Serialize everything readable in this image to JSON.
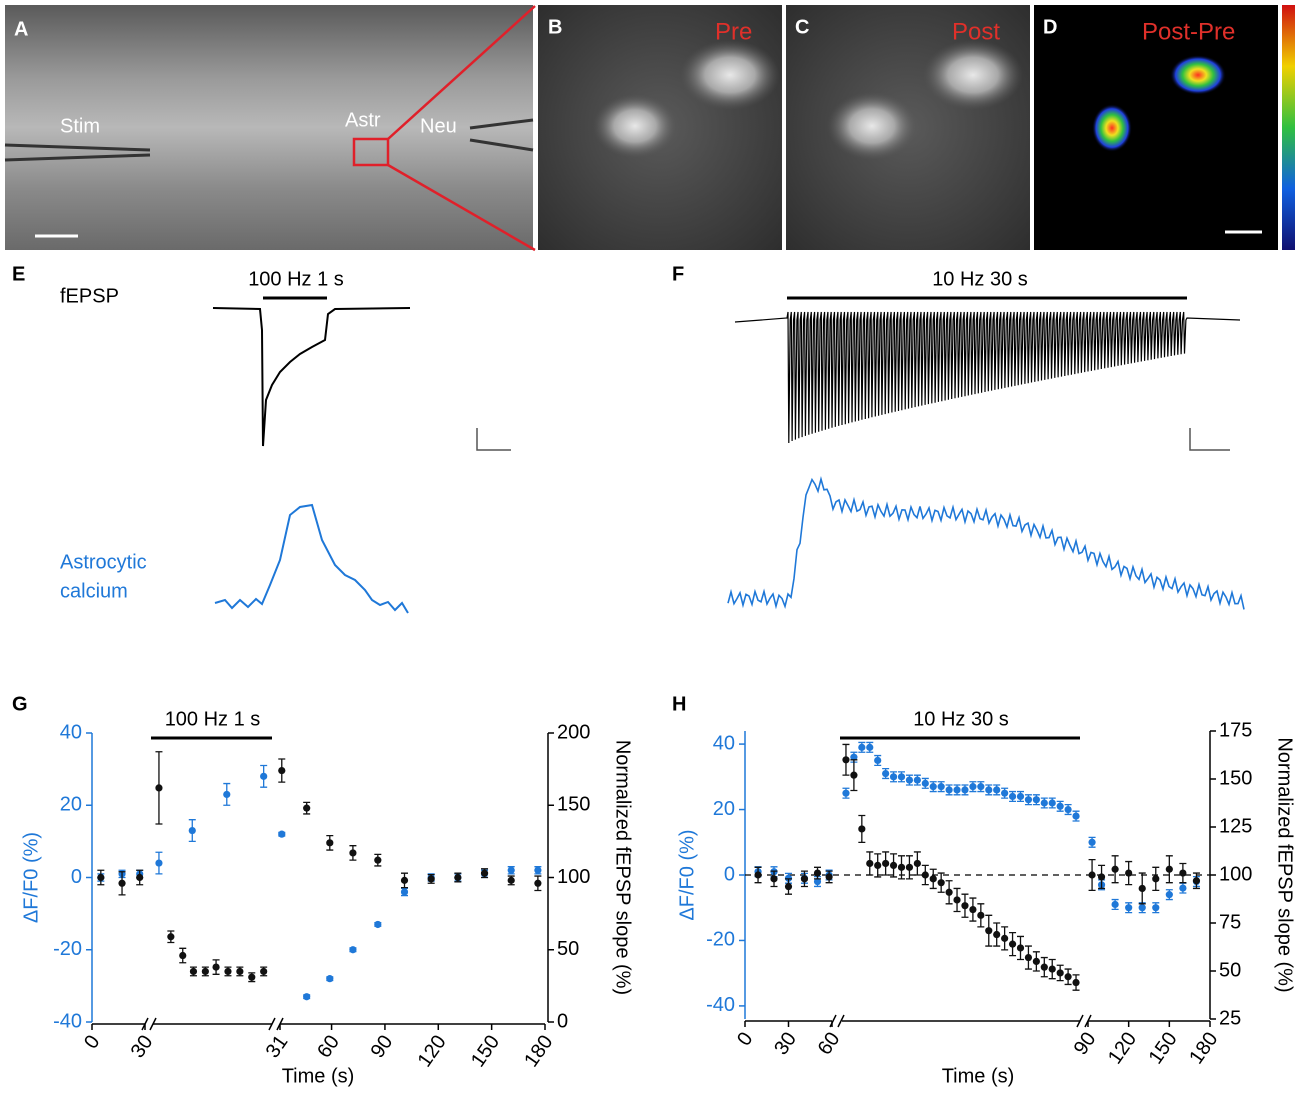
{
  "panels": {
    "A": {
      "label": "A",
      "annotations": [
        "Stim",
        "Astr",
        "Neu"
      ]
    },
    "B": {
      "label": "B",
      "title": "Pre"
    },
    "C": {
      "label": "C",
      "title": "Post"
    },
    "D": {
      "label": "D",
      "title": "Post-Pre"
    },
    "E": {
      "label": "E",
      "trace_labels": [
        "fEPSP",
        "Astrocytic",
        "calcium"
      ],
      "stimulus": "100 Hz 1 s"
    },
    "F": {
      "label": "F",
      "stimulus": "10 Hz 30 s"
    }
  },
  "chart_data": [
    {
      "type": "scatter",
      "label": "G",
      "annotation": "100 Hz 1 s",
      "xlabel": "Time (s)",
      "ylabel": "ΔF/F0 (%)",
      "y2label": "Normalized fEPSP slope (%)",
      "xsegments": [
        [
          0,
          30
        ],
        [
          30,
          31
        ],
        [
          31,
          180
        ]
      ],
      "xticks": [
        0,
        30,
        31,
        60,
        90,
        120,
        150,
        180
      ],
      "ylim": [
        -40,
        40
      ],
      "yticks": [
        -40,
        -20,
        0,
        20,
        40
      ],
      "y2lim": [
        0,
        200
      ],
      "y2ticks": [
        0,
        50,
        100,
        150,
        200
      ],
      "series": [
        {
          "color": "#1f78d8",
          "axis": "y",
          "x": [
            5,
            17,
            27,
            30.05,
            30.33,
            30.62,
            30.93,
            32,
            46,
            59,
            72,
            86,
            101,
            116,
            131,
            146,
            161,
            176
          ],
          "values": [
            0,
            1,
            1,
            4,
            13,
            23,
            28,
            12,
            -33,
            -28,
            -20,
            -13,
            -4,
            0,
            0,
            1,
            2,
            2
          ],
          "errors": [
            1,
            1,
            1,
            3,
            3,
            3,
            3,
            0.5,
            0.5,
            0.5,
            0.5,
            0.5,
            1,
            1,
            1,
            1,
            1,
            1
          ]
        },
        {
          "color": "#111111",
          "axis": "y2",
          "x": [
            5,
            17,
            27,
            30.05,
            30.15,
            30.25,
            30.34,
            30.44,
            30.53,
            30.63,
            30.73,
            30.83,
            30.93,
            32,
            46,
            59,
            72,
            86,
            101,
            116,
            131,
            146,
            161,
            176
          ],
          "values": [
            100,
            96,
            100,
            162,
            59,
            46,
            35,
            35,
            38,
            35,
            35,
            31,
            35,
            174,
            148,
            124,
            117,
            112,
            98,
            99,
            100,
            103,
            98,
            96
          ],
          "errors": [
            5,
            8,
            5,
            25,
            4,
            5,
            3,
            3,
            5,
            3,
            3,
            3,
            3,
            8,
            4,
            5,
            5,
            4,
            5,
            3,
            3,
            3,
            3,
            5
          ]
        }
      ]
    },
    {
      "type": "scatter",
      "label": "H",
      "annotation": "10 Hz 30 s",
      "xlabel": "Time (s)",
      "ylabel": "ΔF/F0 (%)",
      "y2label": "Normalized fEPSP slope (%)",
      "xsegments": [
        [
          0,
          60
        ],
        [
          60,
          90
        ],
        [
          90,
          180
        ]
      ],
      "xticks": [
        0,
        30,
        60,
        90,
        120,
        150,
        180
      ],
      "ylim": [
        -44,
        44
      ],
      "yticks": [
        -40,
        -20,
        0,
        20,
        40
      ],
      "y2lim": [
        25,
        175
      ],
      "y2ticks": [
        25,
        50,
        75,
        100,
        125,
        150,
        175
      ],
      "baseline": 0,
      "series": [
        {
          "color": "#1f78d8",
          "axis": "y",
          "x": [
            9,
            20,
            30,
            41,
            50,
            58,
            60.5,
            61.5,
            62.5,
            63.5,
            64.5,
            65.5,
            66.5,
            67.5,
            68.5,
            69.5,
            70.5,
            71.5,
            72.5,
            73.5,
            74.5,
            75.5,
            76.5,
            77.5,
            78.5,
            79.5,
            80.5,
            81.5,
            82.5,
            83.5,
            84.5,
            85.5,
            86.5,
            87.5,
            88.5,
            89.5,
            93,
            100,
            110,
            120,
            130,
            140,
            150,
            160,
            170
          ],
          "values": [
            1,
            1,
            -1,
            -1,
            -2,
            0,
            25,
            36,
            39,
            39,
            35,
            31,
            30,
            30,
            29,
            29,
            28,
            27,
            27,
            26,
            26,
            26,
            27,
            27,
            26,
            26,
            25,
            24,
            24,
            23,
            23,
            22,
            22,
            21,
            20,
            18,
            10,
            -3,
            -9,
            -10,
            -10,
            -10,
            -6,
            -4,
            -2
          ],
          "errors": [
            1.5,
            1.5,
            1.5,
            1.5,
            1.5,
            1.5,
            1.5,
            1.5,
            1.5,
            1.5,
            1.5,
            1.5,
            1.5,
            1.5,
            1.5,
            1.5,
            1.5,
            1.5,
            1.5,
            1.5,
            1.5,
            1.5,
            1.5,
            1.5,
            1.5,
            1.5,
            1.5,
            1.5,
            1.5,
            1.5,
            1.5,
            1.5,
            1.5,
            1.5,
            1.5,
            1.5,
            1.5,
            1.5,
            1.5,
            1.5,
            1.5,
            1.5,
            1.5,
            1.5,
            1.5
          ]
        },
        {
          "color": "#111111",
          "axis": "y2",
          "x": [
            9,
            20,
            30,
            41,
            50,
            58,
            60.5,
            61.5,
            62.5,
            63.5,
            64.5,
            65.5,
            66.5,
            67.5,
            68.5,
            69.5,
            70.5,
            71.5,
            72.5,
            73.5,
            74.5,
            75.5,
            76.5,
            77.5,
            78.5,
            79.5,
            80.5,
            81.5,
            82.5,
            83.5,
            84.5,
            85.5,
            86.5,
            87.5,
            88.5,
            89.5,
            93,
            100,
            110,
            120,
            130,
            140,
            150,
            160,
            170
          ],
          "values": [
            100,
            98,
            94,
            98,
            101,
            99,
            160,
            152,
            124,
            106,
            105,
            106,
            105,
            104,
            104,
            106,
            100,
            98,
            96,
            91,
            87,
            84,
            82,
            79,
            71,
            69,
            67,
            64,
            62,
            57,
            55,
            52,
            51,
            49,
            47,
            44,
            100,
            99,
            103,
            101,
            93,
            98,
            103,
            101,
            97
          ],
          "errors": [
            4,
            4,
            4,
            4,
            3,
            3,
            8,
            8,
            7,
            6,
            6,
            6,
            6,
            6,
            6,
            6,
            5,
            5,
            5,
            6,
            6,
            6,
            6,
            6,
            8,
            6,
            6,
            6,
            6,
            6,
            5,
            5,
            5,
            4,
            4,
            4,
            8,
            6,
            7,
            6,
            8,
            6,
            7,
            5,
            4
          ]
        }
      ]
    }
  ]
}
